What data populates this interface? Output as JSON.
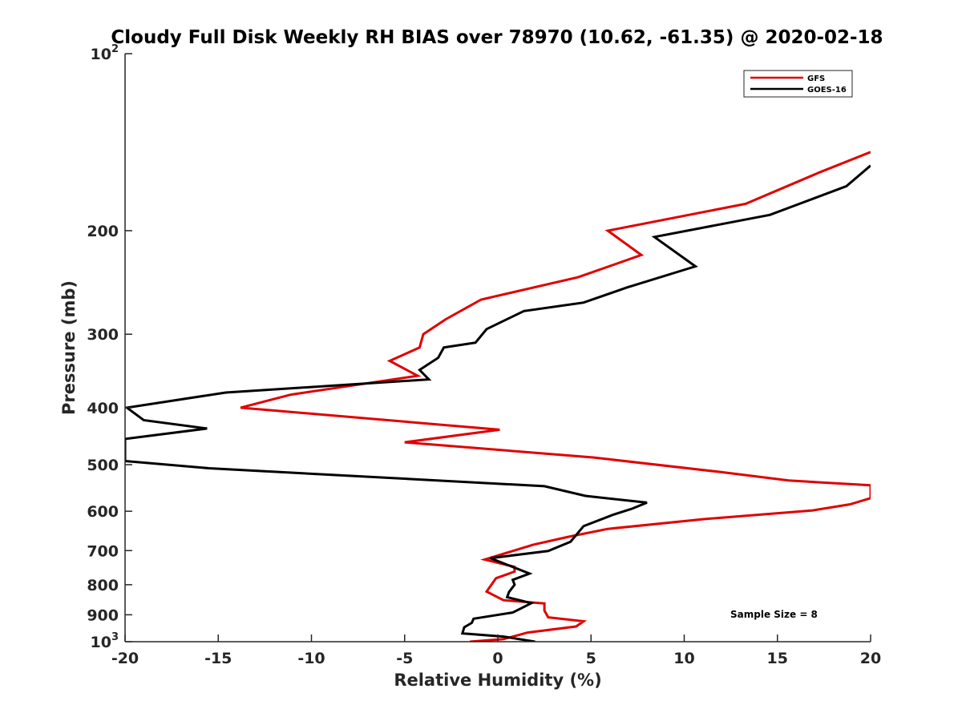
{
  "chart_data": {
    "type": "line",
    "title": "Cloudy Full Disk Weekly RH BIAS over 78970 (10.62, -61.35) @ 2020-02-18",
    "xlabel": "Relative Humidity (%)",
    "ylabel": "Pressure (mb)",
    "xlim": [
      -20,
      20
    ],
    "ylim": [
      100,
      1000
    ],
    "yscale": "log",
    "y_reversed": true,
    "grid": false,
    "legend_position": "top-right",
    "annotation": "Sample Size = 8",
    "x_ticks": [
      -20,
      -15,
      -10,
      -5,
      0,
      5,
      10,
      15,
      20
    ],
    "x_tick_labels": [
      "-20",
      "-15",
      "-10",
      "-5",
      "0",
      "5",
      "10",
      "15",
      "20"
    ],
    "y_ticks": [
      100,
      200,
      300,
      400,
      500,
      600,
      700,
      800,
      900,
      1000
    ],
    "y_tick_labels": [
      {
        "base": "10",
        "exp": "2"
      },
      {
        "base": "200",
        "exp": ""
      },
      {
        "base": "300",
        "exp": ""
      },
      {
        "base": "400",
        "exp": ""
      },
      {
        "base": "500",
        "exp": ""
      },
      {
        "base": "600",
        "exp": ""
      },
      {
        "base": "700",
        "exp": ""
      },
      {
        "base": "800",
        "exp": ""
      },
      {
        "base": "900",
        "exp": ""
      },
      {
        "base": "10",
        "exp": "3"
      }
    ],
    "series": [
      {
        "name": "GFS",
        "color": "#e00000",
        "points": [
          [
            20,
            147
          ],
          [
            17.3,
            159
          ],
          [
            13.3,
            180
          ],
          [
            5.9,
            200
          ],
          [
            7.7,
            220
          ],
          [
            4.3,
            240
          ],
          [
            -0.9,
            262
          ],
          [
            -2.8,
            283
          ],
          [
            -4,
            300
          ],
          [
            -4.2,
            316
          ],
          [
            -5.8,
            333
          ],
          [
            -4.3,
            353
          ],
          [
            -11.1,
            380
          ],
          [
            -13.8,
            400
          ],
          [
            0.1,
            436
          ],
          [
            -5,
            458
          ],
          [
            5.1,
            486
          ],
          [
            11.8,
            514
          ],
          [
            15.6,
            532
          ],
          [
            20,
            542
          ],
          [
            20,
            570
          ],
          [
            18.9,
            584
          ],
          [
            16.9,
            598
          ],
          [
            11,
            619
          ],
          [
            5.9,
            643
          ],
          [
            3.8,
            663
          ],
          [
            1.9,
            684
          ],
          [
            -0.7,
            725
          ],
          [
            0.9,
            746
          ],
          [
            0.9,
            760
          ],
          [
            -0.1,
            780
          ],
          [
            -0.6,
            822
          ],
          [
            0.3,
            850
          ],
          [
            2.5,
            861
          ],
          [
            2.5,
            885
          ],
          [
            2.7,
            909
          ],
          [
            4.6,
            923
          ],
          [
            4.2,
            942
          ],
          [
            1.6,
            965
          ],
          [
            0.3,
            990
          ],
          [
            -1.5,
            1000
          ]
        ]
      },
      {
        "name": "GOES-16",
        "color": "#000000",
        "points": [
          [
            20,
            155
          ],
          [
            18.7,
            168
          ],
          [
            14.6,
            188
          ],
          [
            8.4,
            205
          ],
          [
            10.6,
            230
          ],
          [
            6.9,
            250
          ],
          [
            4.6,
            265
          ],
          [
            1.4,
            274
          ],
          [
            -0.6,
            294
          ],
          [
            -1.2,
            310
          ],
          [
            -2.9,
            316
          ],
          [
            -3.2,
            329
          ],
          [
            -4.2,
            345
          ],
          [
            -3.7,
            358
          ],
          [
            -14.6,
            377
          ],
          [
            -19.9,
            400
          ],
          [
            -19,
            420
          ],
          [
            -15.6,
            434
          ],
          [
            -20,
            452
          ],
          [
            -20,
            493
          ],
          [
            -15.5,
            507
          ],
          [
            2.5,
            544
          ],
          [
            4.7,
            565
          ],
          [
            8,
            580
          ],
          [
            7.2,
            594
          ],
          [
            6.2,
            608
          ],
          [
            4.6,
            636
          ],
          [
            3.9,
            676
          ],
          [
            2.7,
            701
          ],
          [
            -0.4,
            721
          ],
          [
            1.7,
            766
          ],
          [
            0.8,
            785
          ],
          [
            0.9,
            800
          ],
          [
            0.6,
            823
          ],
          [
            0.5,
            840
          ],
          [
            1.8,
            860
          ],
          [
            0.8,
            892
          ],
          [
            -1.3,
            914
          ],
          [
            -1.4,
            929
          ],
          [
            -1.8,
            945
          ],
          [
            -1.9,
            968
          ],
          [
            0.3,
            980
          ],
          [
            2,
            1000
          ]
        ]
      }
    ]
  }
}
